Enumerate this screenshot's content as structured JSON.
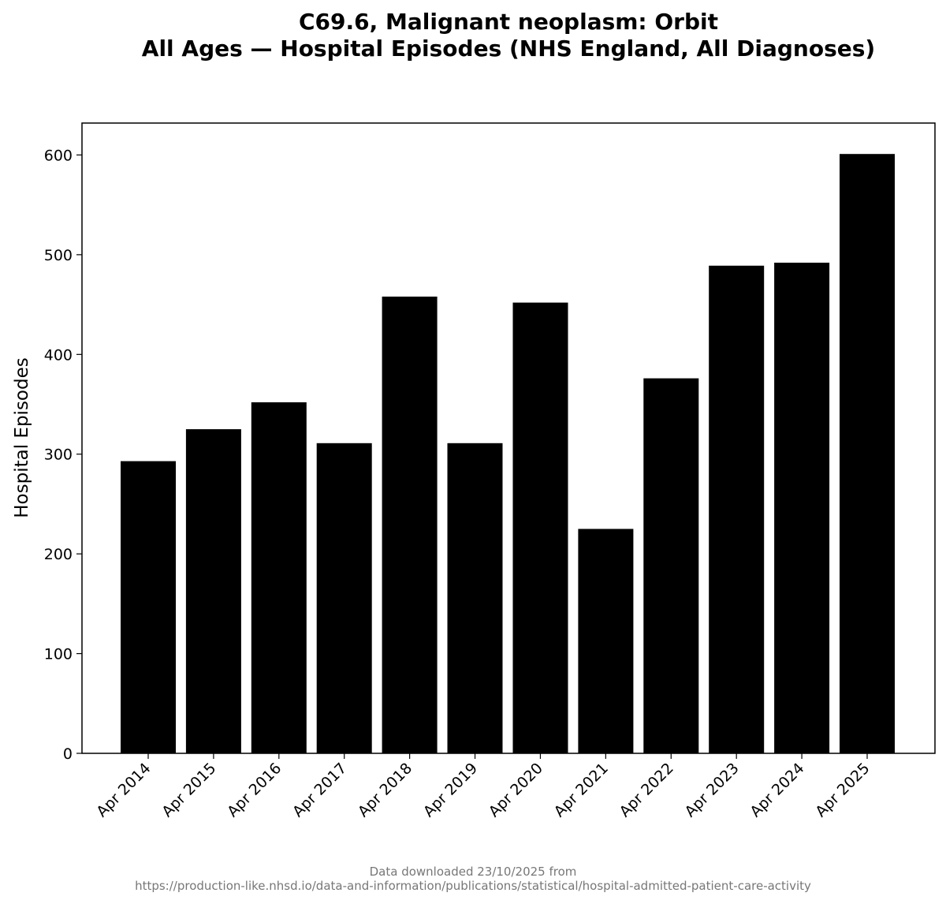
{
  "chart_data": {
    "type": "bar",
    "title_lines": [
      "C69.6, Malignant neoplasm: Orbit",
      "All Ages — Hospital Episodes (NHS England, All Diagnoses)"
    ],
    "ylabel": "Hospital Episodes",
    "xlabel": "",
    "categories": [
      "Apr 2014",
      "Apr 2015",
      "Apr 2016",
      "Apr 2017",
      "Apr 2018",
      "Apr 2019",
      "Apr 2020",
      "Apr 2021",
      "Apr 2022",
      "Apr 2023",
      "Apr 2024",
      "Apr 2025"
    ],
    "values": [
      293,
      325,
      352,
      311,
      458,
      311,
      452,
      225,
      376,
      489,
      492,
      601
    ],
    "ylim": [
      0,
      632
    ],
    "yticks": [
      0,
      100,
      200,
      300,
      400,
      500,
      600
    ],
    "bar_color": "#000000",
    "grid": false,
    "footer_lines": [
      "Data downloaded 23/10/2025 from",
      "https://production-like.nhsd.io/data-and-information/publications/statistical/hospital-admitted-patient-care-activity"
    ]
  }
}
